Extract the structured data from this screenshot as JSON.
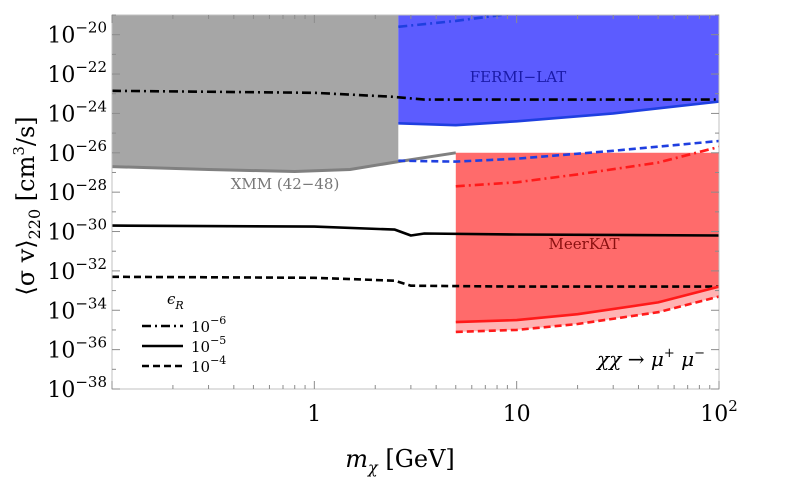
{
  "chart_data": {
    "type": "line",
    "xscale": "log",
    "yscale": "log",
    "xlim": [
      0.1,
      100
    ],
    "ylim": [
      1e-38,
      1e-19
    ],
    "xlabel_parts": [
      "m",
      "χ",
      " [GeV]"
    ],
    "ylabel_parts": [
      "⟨σ v⟩",
      "220",
      " [cm",
      "3",
      "/s]"
    ],
    "x_ticks": [
      {
        "value": 1,
        "label": "1"
      },
      {
        "value": 10,
        "label": "10"
      },
      {
        "value": 100,
        "base": "10",
        "exp": "2"
      }
    ],
    "y_ticks": [
      {
        "value": -20,
        "base": "10",
        "exp": "−20"
      },
      {
        "value": -22,
        "base": "10",
        "exp": "−22"
      },
      {
        "value": -24,
        "base": "10",
        "exp": "−24"
      },
      {
        "value": -26,
        "base": "10",
        "exp": "−26"
      },
      {
        "value": -28,
        "base": "10",
        "exp": "−28"
      },
      {
        "value": -30,
        "base": "10",
        "exp": "−30"
      },
      {
        "value": -32,
        "base": "10",
        "exp": "−32"
      },
      {
        "value": -34,
        "base": "10",
        "exp": "−34"
      },
      {
        "value": -36,
        "base": "10",
        "exp": "−36"
      },
      {
        "value": -38,
        "base": "10",
        "exp": "−38"
      }
    ],
    "regions": [
      {
        "label": "XMM (42−48)",
        "color": "#a6a6a6",
        "edge_color": "#808080",
        "x_range": [
          0.1,
          2.6
        ],
        "top_log10": -19,
        "bottom_log10": [
          [
            0.1,
            -26.7
          ],
          [
            0.3,
            -26.85
          ],
          [
            0.8,
            -26.95
          ],
          [
            1.5,
            -26.85
          ],
          [
            2.6,
            -26.45
          ]
        ],
        "extended_edge": [
          [
            2.6,
            -26.45
          ],
          [
            5.0,
            -26.0
          ]
        ]
      },
      {
        "label": "FERMI−LAT",
        "color": "#4545ff",
        "edge_color": "#1f3fe0",
        "x_range": [
          2.6,
          100
        ],
        "top_log10": -19,
        "bottom_log10": [
          [
            2.6,
            -24.5
          ],
          [
            5.0,
            -24.6
          ],
          [
            10,
            -24.4
          ],
          [
            30,
            -24.0
          ],
          [
            100,
            -23.4
          ]
        ]
      },
      {
        "label": "MeerKAT",
        "color": "#ff5757",
        "edge_color": "#ff1a1a",
        "x_range": [
          5.0,
          100
        ],
        "top_log10": -26.0,
        "bottom_log10": [
          [
            5.0,
            -34.6
          ],
          [
            10,
            -34.5
          ],
          [
            20,
            -34.2
          ],
          [
            50,
            -33.6
          ],
          [
            100,
            -32.8
          ]
        ],
        "pink_band_bottom_log10": [
          [
            5.0,
            -35.1
          ],
          [
            10,
            -35.0
          ],
          [
            20,
            -34.7
          ],
          [
            50,
            -34.1
          ],
          [
            100,
            -33.3
          ]
        ]
      }
    ],
    "series": [
      {
        "epsilon_label": "10−6",
        "style": "dashdot",
        "color": "#000000",
        "points": [
          [
            0.1,
            -22.85
          ],
          [
            1,
            -22.95
          ],
          [
            2.4,
            -23.15
          ],
          [
            3.5,
            -23.3
          ],
          [
            10,
            -23.3
          ],
          [
            100,
            -23.3
          ]
        ]
      },
      {
        "epsilon_label": "10−5",
        "style": "solid",
        "color": "#000000",
        "points": [
          [
            0.1,
            -29.7
          ],
          [
            1,
            -29.75
          ],
          [
            2.5,
            -29.9
          ],
          [
            3.0,
            -30.2
          ],
          [
            3.5,
            -30.1
          ],
          [
            10,
            -30.15
          ],
          [
            100,
            -30.2
          ]
        ]
      },
      {
        "epsilon_label": "10−4",
        "style": "dashed",
        "color": "#000000",
        "points": [
          [
            0.1,
            -32.3
          ],
          [
            1,
            -32.35
          ],
          [
            2.5,
            -32.5
          ],
          [
            3.0,
            -32.75
          ],
          [
            10,
            -32.8
          ],
          [
            100,
            -32.8
          ]
        ]
      },
      {
        "region": "FERMI−LAT",
        "epsilon_label": "10−6",
        "style": "dashdot",
        "color": "#1f3fe0",
        "points": [
          [
            2.6,
            -19.6
          ],
          [
            5,
            -19.3
          ],
          [
            10,
            -18.9
          ]
        ]
      },
      {
        "region": "FERMI−LAT",
        "epsilon_label": "10−5",
        "style": "solid",
        "color": "#1f3fe0",
        "points": [
          [
            2.6,
            -24.5
          ],
          [
            5,
            -24.6
          ],
          [
            10,
            -24.4
          ],
          [
            30,
            -24.0
          ],
          [
            100,
            -23.4
          ]
        ]
      },
      {
        "region": "FERMI−LAT",
        "epsilon_label": "10−4",
        "style": "dashed",
        "color": "#1f3fe0",
        "points": [
          [
            2.6,
            -26.4
          ],
          [
            5,
            -26.45
          ],
          [
            10,
            -26.3
          ],
          [
            30,
            -25.9
          ],
          [
            100,
            -25.4
          ]
        ]
      },
      {
        "region": "MeerKAT",
        "epsilon_label": "10−6",
        "style": "dashdot",
        "color": "#ff1a1a",
        "points": [
          [
            5,
            -27.7
          ],
          [
            10,
            -27.5
          ],
          [
            20,
            -27.1
          ],
          [
            50,
            -26.5
          ],
          [
            100,
            -25.7
          ]
        ]
      },
      {
        "region": "MeerKAT",
        "epsilon_label": "10−5",
        "style": "solid",
        "color": "#ff1a1a",
        "points": [
          [
            5,
            -34.6
          ],
          [
            10,
            -34.5
          ],
          [
            20,
            -34.2
          ],
          [
            50,
            -33.6
          ],
          [
            100,
            -32.8
          ]
        ]
      },
      {
        "region": "MeerKAT",
        "epsilon_label": "10−4",
        "style": "dashed",
        "color": "#ff1a1a",
        "points": [
          [
            5,
            -35.1
          ],
          [
            10,
            -35.0
          ],
          [
            20,
            -34.7
          ],
          [
            50,
            -34.1
          ],
          [
            100,
            -33.3
          ]
        ]
      }
    ],
    "legend": {
      "title_base": "ϵ",
      "title_sub": "R",
      "placement": "bottom-left",
      "entries": [
        {
          "style": "dashdot",
          "base": "10",
          "exp": "−6"
        },
        {
          "style": "solid",
          "base": "10",
          "exp": "−5"
        },
        {
          "style": "dashed",
          "base": "10",
          "exp": "−4"
        }
      ]
    },
    "annotation": {
      "parts": [
        "χχ → μ",
        "+",
        " μ",
        "−"
      ],
      "placement": "bottom-right"
    }
  }
}
